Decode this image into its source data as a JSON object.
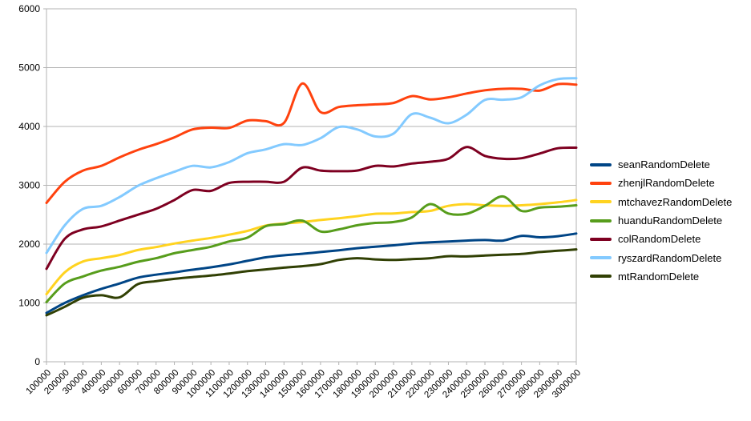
{
  "chart_data": {
    "type": "line",
    "title": "",
    "xlabel": "",
    "ylabel": "",
    "ylim": [
      0,
      6000
    ],
    "ytick_step": 1000,
    "y_tick_labels": [
      "0",
      "1000",
      "2000",
      "3000",
      "4000",
      "5000",
      "6000"
    ],
    "grid": "horizontal",
    "legend_position": "right",
    "x_labels": [
      "100000",
      "200000",
      "300000",
      "400000",
      "500000",
      "600000",
      "700000",
      "800000",
      "900000",
      "1000000",
      "1100000",
      "1200000",
      "1300000",
      "1400000",
      "1500000",
      "1600000",
      "1700000",
      "1800000",
      "1900000",
      "2000000",
      "2100000",
      "2200000",
      "2300000",
      "2400000",
      "2500000",
      "2600000",
      "2700000",
      "2800000",
      "2900000",
      "3000000"
    ],
    "series": [
      {
        "name": "seanRandomDelete",
        "color": "#004586",
        "values": [
          830,
          1000,
          1130,
          1240,
          1330,
          1430,
          1480,
          1520,
          1565,
          1605,
          1655,
          1715,
          1775,
          1810,
          1835,
          1865,
          1895,
          1930,
          1955,
          1980,
          2010,
          2030,
          2045,
          2060,
          2070,
          2060,
          2140,
          2115,
          2135,
          2180
        ]
      },
      {
        "name": "zhenjlRandomDelete",
        "color": "#ff420e",
        "values": [
          2700,
          3060,
          3250,
          3330,
          3475,
          3600,
          3700,
          3815,
          3950,
          3980,
          3975,
          4100,
          4090,
          4060,
          4730,
          4245,
          4330,
          4360,
          4375,
          4400,
          4515,
          4460,
          4495,
          4560,
          4615,
          4640,
          4640,
          4610,
          4720,
          4710
        ]
      },
      {
        "name": "mtchavezRandomDelete",
        "color": "#ffd320",
        "values": [
          1150,
          1520,
          1705,
          1760,
          1815,
          1900,
          1950,
          2010,
          2060,
          2105,
          2160,
          2225,
          2315,
          2350,
          2375,
          2410,
          2440,
          2475,
          2515,
          2520,
          2545,
          2565,
          2650,
          2680,
          2660,
          2650,
          2660,
          2680,
          2710,
          2750
        ]
      },
      {
        "name": "huanduRandomDelete",
        "color": "#579d1c",
        "values": [
          1015,
          1330,
          1450,
          1550,
          1615,
          1700,
          1760,
          1845,
          1900,
          1955,
          2045,
          2110,
          2305,
          2340,
          2400,
          2215,
          2250,
          2320,
          2360,
          2375,
          2455,
          2680,
          2520,
          2515,
          2650,
          2810,
          2565,
          2620,
          2635,
          2660
        ]
      },
      {
        "name": "colRandomDelete",
        "color": "#7e0021",
        "values": [
          1580,
          2090,
          2250,
          2300,
          2400,
          2500,
          2600,
          2750,
          2920,
          2905,
          3040,
          3060,
          3060,
          3060,
          3300,
          3250,
          3240,
          3250,
          3330,
          3320,
          3370,
          3400,
          3450,
          3650,
          3500,
          3450,
          3460,
          3540,
          3630,
          3640
        ]
      },
      {
        "name": "ryszardRandomDelete",
        "color": "#83caff",
        "values": [
          1850,
          2320,
          2600,
          2650,
          2800,
          2990,
          3120,
          3230,
          3330,
          3305,
          3395,
          3545,
          3610,
          3700,
          3685,
          3800,
          3990,
          3950,
          3830,
          3880,
          4210,
          4150,
          4055,
          4200,
          4450,
          4455,
          4495,
          4700,
          4805,
          4820
        ]
      },
      {
        "name": "mtRandomDelete",
        "color": "#314004",
        "values": [
          790,
          935,
          1090,
          1130,
          1095,
          1320,
          1370,
          1410,
          1440,
          1465,
          1500,
          1540,
          1570,
          1600,
          1625,
          1660,
          1730,
          1760,
          1740,
          1730,
          1745,
          1760,
          1795,
          1790,
          1805,
          1820,
          1832,
          1865,
          1887,
          1910
        ]
      }
    ]
  },
  "colors": {
    "background": "#ffffff",
    "grid": "#b3b3b3",
    "axis": "#b3b3b3",
    "text": "#000000"
  }
}
